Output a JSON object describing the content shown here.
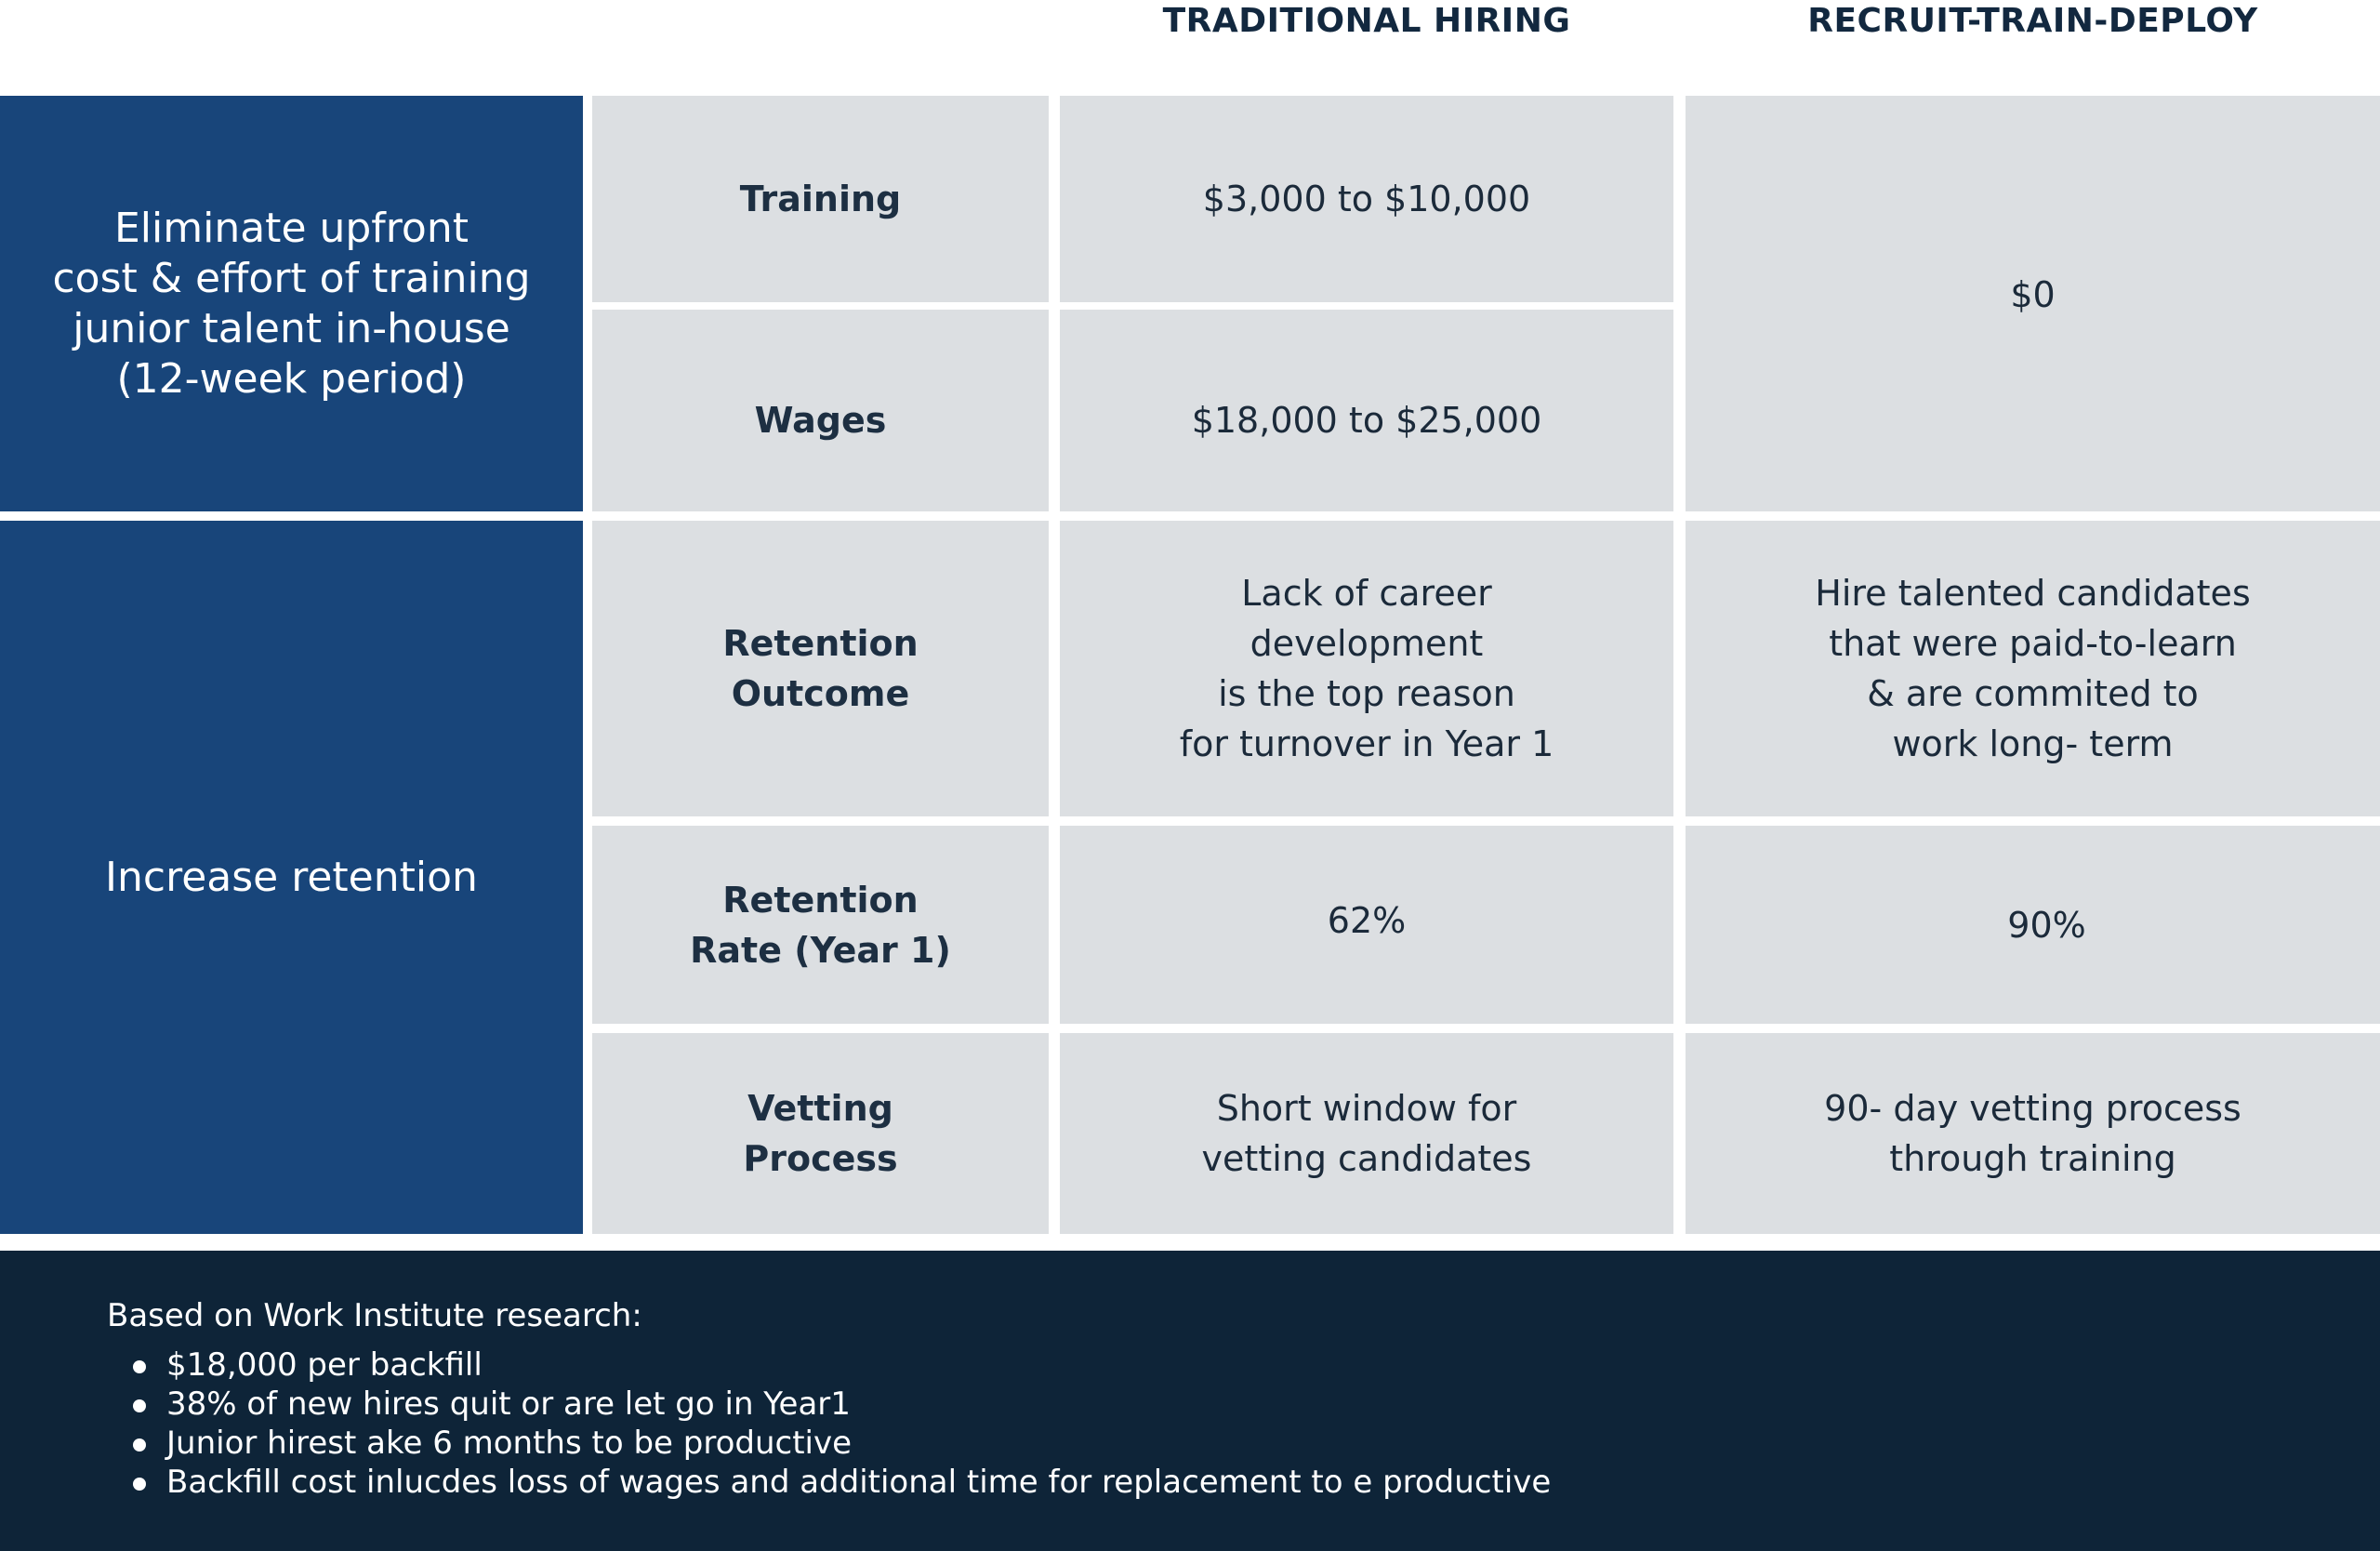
{
  "headers": {
    "traditional": "TRADITIONAL HIRING",
    "rtd": "RECRUIT-TRAIN-DEPLOY"
  },
  "groups": {
    "training_cost": "Eliminate upfront\ncost & effort of training\njunior talent in-house\n(12-week period)",
    "retention": "Increase retention"
  },
  "rows": {
    "training": {
      "label": "Training",
      "traditional": "$3,000 to $10,000"
    },
    "wages": {
      "label": "Wages",
      "traditional": "$18,000 to $25,000"
    },
    "cost_rtd": "$0",
    "retention_outcome": {
      "label": "Retention\nOutcome",
      "traditional": "Lack of career\ndevelopment\nis the top reason\nfor turnover in Year 1",
      "rtd": "Hire talented candidates\nthat were paid-to-learn\n& are commited to\nwork long- term"
    },
    "retention_rate": {
      "label": "Retention\nRate (Year 1)",
      "traditional": "62%",
      "rtd": "90%"
    },
    "vetting": {
      "label": "Vetting\nProcess",
      "traditional": "Short window for\nvetting candidates",
      "rtd": "90- day vetting process\nthrough training"
    }
  },
  "footer": {
    "title": "Based on Work Institute research:",
    "items": [
      "$18,000 per backfill",
      "38% of new hires quit or are let go in Year1",
      "Junior hirest ake 6 months to be productive",
      "Backfill cost inlucdes loss of wages and additional time for replacement to e productive"
    ]
  },
  "colors": {
    "navy": "#18457a",
    "grey_cell": "#dcdfe2",
    "footer_bg": "#0e2438"
  }
}
